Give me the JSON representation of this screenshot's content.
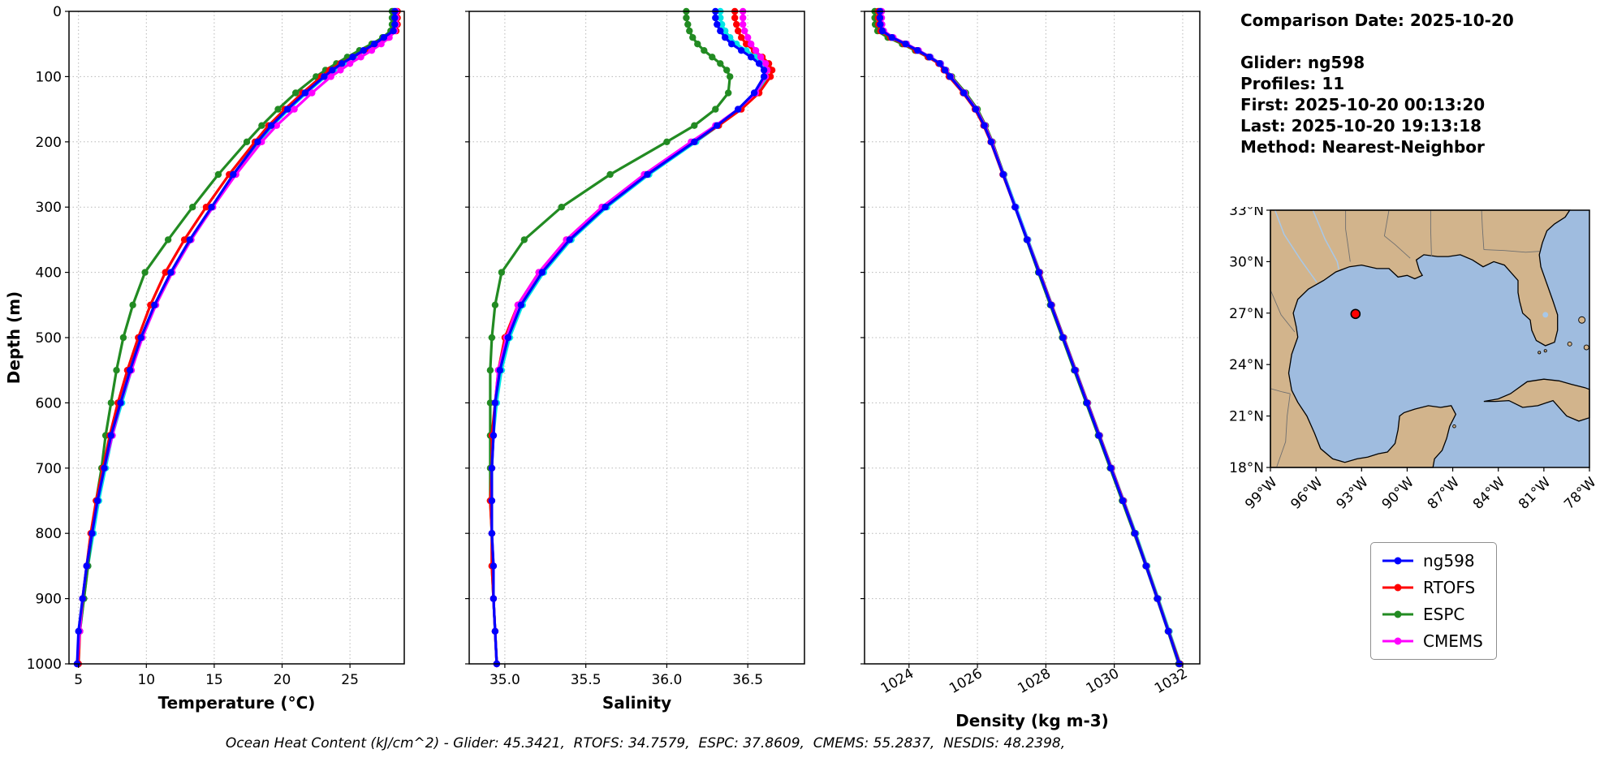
{
  "figure": {
    "background": "#ffffff"
  },
  "info": {
    "comparison_date": "Comparison Date: 2025-10-20",
    "glider": "Glider: ng598",
    "profiles": "Profiles: 11",
    "first": "First: 2025-10-20 00:13:20",
    "last": "Last: 2025-10-20 19:13:18",
    "method": "Method: Nearest-Neighbor"
  },
  "caption": "Ocean Heat Content (kJ/cm^2) - Glider: 45.3421,  RTOFS: 34.7579,  ESPC: 37.8609,  CMEMS: 55.2837,  NESDIS: 48.2398,",
  "legend": {
    "marker": "line-circle",
    "items": [
      {
        "label": "ng598",
        "color": "#0000ff"
      },
      {
        "label": "RTOFS",
        "color": "#ff0000"
      },
      {
        "label": "ESPC",
        "color": "#228B22"
      },
      {
        "label": "CMEMS",
        "color": "#ff00ff"
      }
    ]
  },
  "map": {
    "region": "Gulf of Mexico",
    "extent": {
      "lon_w": [
        99,
        78
      ],
      "lat": [
        18,
        33
      ]
    },
    "lat_tick_values": [
      33,
      30,
      27,
      24,
      21,
      18
    ],
    "lat_tick_labels": [
      "33°N",
      "30°N",
      "27°N",
      "24°N",
      "21°N",
      "18°N"
    ],
    "lon_tick_values": [
      99,
      96,
      93,
      90,
      87,
      84,
      81,
      78
    ],
    "lon_tick_labels": [
      "99°W",
      "96°W",
      "93°W",
      "90°W",
      "87°W",
      "84°W",
      "81°W",
      "78°W"
    ],
    "land_color": "#d2b48c",
    "ocean_color": "#9fbcdf",
    "coastline_color": "#000000",
    "state_border_color": "#6f6f6f",
    "river_color": "#a8c8e8",
    "glider_marker": {
      "lat": 26.95,
      "lon_w": 93.4,
      "color": "#ff0000",
      "edge_color": "#000000"
    }
  },
  "chart_data": {
    "type": "line",
    "orientation": "vertical-profile",
    "grid": true,
    "ylabel": "Depth (m)",
    "ylim": [
      0,
      1000
    ],
    "yticks": [
      0,
      100,
      200,
      300,
      400,
      500,
      600,
      700,
      800,
      900,
      1000
    ],
    "depths": [
      0,
      10,
      20,
      30,
      40,
      50,
      60,
      70,
      80,
      90,
      100,
      125,
      150,
      175,
      200,
      250,
      300,
      350,
      400,
      450,
      500,
      550,
      600,
      650,
      700,
      750,
      800,
      850,
      900,
      950,
      1000
    ],
    "panels": [
      {
        "data_name": "temperature-panel",
        "xlabel": "Temperature (°C)",
        "xlim": [
          4.3,
          29.0
        ],
        "xticks": [
          5,
          10,
          15,
          20,
          25
        ],
        "xtick_labels": [
          "5",
          "10",
          "15",
          "20",
          "25"
        ],
        "xtick_rotation": 0,
        "series": [
          {
            "name": "unlabeled-cyan",
            "color": "#00e5e5",
            "values": [
              28.2,
              28.2,
              28.2,
              28.1,
              27.6,
              26.9,
              26.1,
              25.3,
              24.5,
              23.8,
              23.2,
              21.8,
              20.5,
              19.3,
              18.3,
              16.5,
              14.9,
              13.3,
              11.9,
              10.7,
              9.7,
              8.9,
              8.2,
              7.5,
              7.0,
              6.5,
              6.1,
              5.7,
              5.4,
              5.1,
              5.0
            ]
          },
          {
            "name": "ESPC",
            "color": "#228B22",
            "values": [
              28.1,
              28.1,
              28.1,
              28.0,
              27.4,
              26.6,
              25.7,
              24.8,
              24.0,
              23.2,
              22.5,
              21.0,
              19.7,
              18.5,
              17.4,
              15.3,
              13.4,
              11.6,
              9.9,
              9.0,
              8.3,
              7.8,
              7.4,
              7.0,
              6.7,
              6.3,
              6.0,
              5.7,
              5.4,
              5.1,
              4.9
            ]
          },
          {
            "name": "RTOFS",
            "color": "#ff0000",
            "values": [
              28.5,
              28.5,
              28.5,
              28.4,
              27.8,
              27.0,
              26.1,
              25.2,
              24.3,
              23.5,
              22.9,
              21.5,
              20.2,
              19.0,
              18.0,
              16.1,
              14.4,
              12.8,
              11.4,
              10.3,
              9.4,
              8.6,
              7.9,
              7.3,
              6.8,
              6.3,
              5.9,
              5.6,
              5.3,
              5.1,
              5.0
            ]
          },
          {
            "name": "CMEMS",
            "color": "#ff00ff",
            "values": [
              28.4,
              28.4,
              28.4,
              28.3,
              27.9,
              27.3,
              26.6,
              25.8,
              25.0,
              24.3,
              23.6,
              22.2,
              20.9,
              19.6,
              18.5,
              16.6,
              14.9,
              13.3,
              11.9,
              10.7,
              9.7,
              8.9,
              8.1,
              7.5,
              6.9,
              6.4,
              6.0,
              5.6,
              5.3,
              5.1,
              4.9
            ]
          },
          {
            "name": "ng598",
            "color": "#0000ff",
            "values": [
              28.3,
              28.3,
              28.3,
              28.2,
              27.5,
              26.8,
              26.0,
              25.2,
              24.4,
              23.7,
              23.1,
              21.7,
              20.4,
              19.2,
              18.2,
              16.4,
              14.8,
              13.2,
              11.8,
              10.6,
              9.6,
              8.8,
              8.1,
              7.4,
              6.9,
              6.4,
              6.0,
              5.6,
              5.3,
              5.0,
              4.9
            ]
          }
        ]
      },
      {
        "data_name": "salinity-panel",
        "xlabel": "Salinity",
        "xlim": [
          34.78,
          36.85
        ],
        "xticks": [
          35.0,
          35.5,
          36.0,
          36.5
        ],
        "xtick_labels": [
          "35.0",
          "35.5",
          "36.0",
          "36.5"
        ],
        "xtick_rotation": 0,
        "series": [
          {
            "name": "unlabeled-cyan",
            "color": "#00e5e5",
            "values": [
              36.33,
              36.33,
              36.34,
              36.36,
              36.39,
              36.43,
              36.49,
              36.55,
              36.6,
              36.62,
              36.62,
              36.56,
              36.45,
              36.32,
              36.18,
              35.89,
              35.63,
              35.41,
              35.24,
              35.11,
              35.03,
              34.98,
              34.95,
              34.93,
              34.92,
              34.92,
              34.92,
              34.93,
              34.93,
              34.94,
              34.95
            ]
          },
          {
            "name": "ESPC",
            "color": "#228B22",
            "values": [
              36.12,
              36.12,
              36.13,
              36.14,
              36.16,
              36.19,
              36.23,
              36.28,
              36.33,
              36.37,
              36.39,
              36.38,
              36.3,
              36.17,
              36.0,
              35.65,
              35.35,
              35.12,
              34.98,
              34.94,
              34.92,
              34.91,
              34.91,
              34.91,
              34.91,
              34.91,
              34.92,
              34.92,
              34.93,
              34.94,
              34.95
            ]
          },
          {
            "name": "RTOFS",
            "color": "#ff0000",
            "values": [
              36.42,
              36.42,
              36.43,
              36.44,
              36.46,
              36.49,
              36.54,
              36.59,
              36.63,
              36.65,
              36.64,
              36.57,
              36.46,
              36.32,
              36.17,
              35.87,
              35.6,
              35.38,
              35.21,
              35.08,
              35.0,
              34.96,
              34.94,
              34.92,
              34.92,
              34.91,
              34.92,
              34.92,
              34.93,
              34.94,
              34.95
            ]
          },
          {
            "name": "CMEMS",
            "color": "#ff00ff",
            "values": [
              36.47,
              36.47,
              36.47,
              36.48,
              36.5,
              36.52,
              36.55,
              36.58,
              36.61,
              36.62,
              36.61,
              36.55,
              36.44,
              36.3,
              36.15,
              35.86,
              35.6,
              35.38,
              35.21,
              35.08,
              35.01,
              34.96,
              34.94,
              34.93,
              34.92,
              34.92,
              34.92,
              34.93,
              34.93,
              34.94,
              34.95
            ]
          },
          {
            "name": "ng598",
            "color": "#0000ff",
            "values": [
              36.3,
              36.3,
              36.31,
              36.33,
              36.36,
              36.4,
              36.46,
              36.52,
              36.57,
              36.6,
              36.6,
              36.54,
              36.44,
              36.31,
              36.17,
              35.88,
              35.62,
              35.4,
              35.23,
              35.1,
              35.02,
              34.97,
              34.94,
              34.93,
              34.92,
              34.92,
              34.92,
              34.93,
              34.93,
              34.94,
              34.95
            ]
          }
        ]
      },
      {
        "data_name": "density-panel",
        "xlabel": "Density (kg m-3)",
        "xlim": [
          1022.7,
          1032.5
        ],
        "xticks": [
          1024,
          1026,
          1028,
          1030,
          1032
        ],
        "xtick_labels": [
          "1024",
          "1026",
          "1028",
          "1030",
          "1032"
        ],
        "xtick_rotation": 30,
        "series": [
          {
            "name": "unlabeled-cyan",
            "color": "#00e5e5",
            "values": [
              1023.18,
              1023.18,
              1023.19,
              1023.25,
              1023.53,
              1023.93,
              1024.28,
              1024.63,
              1024.93,
              1025.08,
              1025.23,
              1025.63,
              1025.98,
              1026.23,
              1026.43,
              1026.78,
              1027.13,
              1027.48,
              1027.83,
              1028.18,
              1028.53,
              1028.88,
              1029.23,
              1029.58,
              1029.93,
              1030.28,
              1030.63,
              1030.96,
              1031.29,
              1031.61,
              1031.93
            ]
          },
          {
            "name": "ESPC",
            "color": "#228B22",
            "values": [
              1023.0,
              1023.0,
              1023.01,
              1023.08,
              1023.38,
              1023.8,
              1024.18,
              1024.55,
              1024.88,
              1025.08,
              1025.25,
              1025.66,
              1026.0,
              1026.24,
              1026.44,
              1026.77,
              1027.1,
              1027.44,
              1027.78,
              1028.13,
              1028.48,
              1028.83,
              1029.18,
              1029.53,
              1029.88,
              1030.23,
              1030.58,
              1030.92,
              1031.25,
              1031.57,
              1031.88
            ]
          },
          {
            "name": "RTOFS",
            "color": "#ff0000",
            "values": [
              1023.1,
              1023.1,
              1023.11,
              1023.17,
              1023.46,
              1023.86,
              1024.21,
              1024.56,
              1024.87,
              1025.02,
              1025.17,
              1025.58,
              1025.93,
              1026.18,
              1026.39,
              1026.74,
              1027.1,
              1027.46,
              1027.82,
              1028.17,
              1028.52,
              1028.87,
              1029.22,
              1029.57,
              1029.92,
              1030.27,
              1030.61,
              1030.94,
              1031.27,
              1031.59,
              1031.92
            ]
          },
          {
            "name": "CMEMS",
            "color": "#ff00ff",
            "values": [
              1023.2,
              1023.2,
              1023.21,
              1023.26,
              1023.54,
              1023.93,
              1024.28,
              1024.62,
              1024.92,
              1025.07,
              1025.22,
              1025.62,
              1025.97,
              1026.22,
              1026.42,
              1026.76,
              1027.11,
              1027.46,
              1027.81,
              1028.16,
              1028.51,
              1028.86,
              1029.21,
              1029.56,
              1029.91,
              1030.26,
              1030.6,
              1030.93,
              1031.26,
              1031.58,
              1031.9
            ]
          },
          {
            "name": "ng598",
            "color": "#0000ff",
            "values": [
              1023.15,
              1023.15,
              1023.16,
              1023.22,
              1023.5,
              1023.9,
              1024.25,
              1024.6,
              1024.9,
              1025.05,
              1025.2,
              1025.6,
              1025.95,
              1026.2,
              1026.4,
              1026.75,
              1027.1,
              1027.45,
              1027.8,
              1028.15,
              1028.5,
              1028.85,
              1029.2,
              1029.55,
              1029.9,
              1030.25,
              1030.6,
              1030.93,
              1031.26,
              1031.58,
              1031.9
            ]
          }
        ]
      }
    ]
  }
}
